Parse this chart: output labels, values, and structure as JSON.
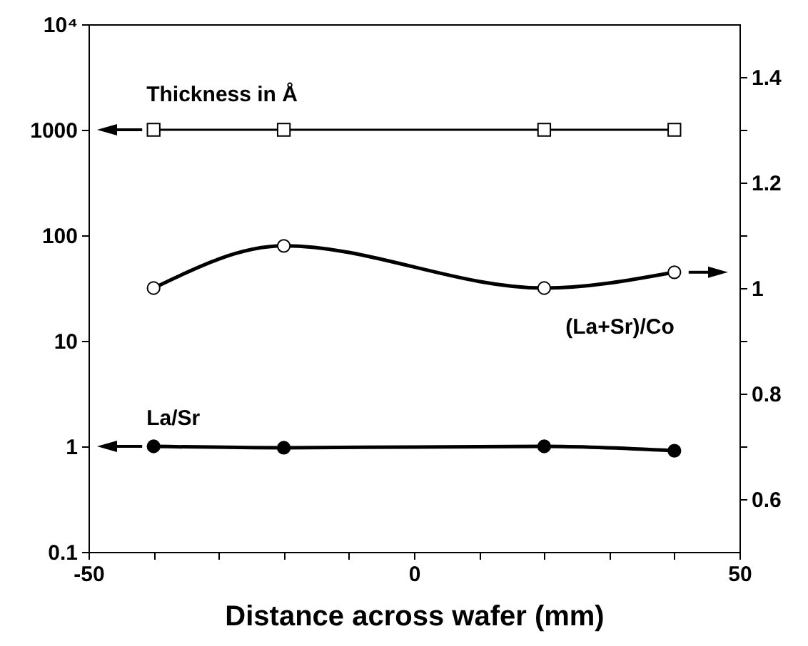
{
  "chart_data": {
    "type": "line",
    "xlabel": "Distance across wafer (mm)",
    "log": "y",
    "x": [
      -40,
      -20,
      20,
      40
    ],
    "series": [
      {
        "name": "Thickness in Å",
        "color": "#000000",
        "values": [
          1000,
          1000,
          1000,
          1000
        ],
        "marker": "square"
      },
      {
        "name": "La/Sr",
        "color": "#000000",
        "values": [
          1.0,
          0.97,
          1.0,
          0.91
        ],
        "marker": "circle",
        "colors": [
          "#000000",
          "#000000",
          "#000000",
          "#000000"
        ]
      },
      {
        "name": "(La+Sr)/Co",
        "color": "#000000",
        "values": [
          1.0,
          1.08,
          1.0,
          1.03
        ],
        "axis": "y2",
        "marker": "circle"
      }
    ],
    "xlim": [
      -50,
      50
    ],
    "xticks": [
      -50,
      {
        "value": -40,
        "label": null
      },
      {
        "value": -30,
        "label": null
      },
      {
        "value": -20,
        "label": null
      },
      {
        "value": -10,
        "label": null
      },
      0,
      {
        "value": 10,
        "label": null
      },
      {
        "value": 20,
        "label": null
      },
      {
        "value": 30,
        "label": null
      },
      {
        "value": 40,
        "label": null
      },
      50
    ],
    "ylim": [
      0.1,
      10000
    ],
    "yticks": [
      0.1,
      1,
      10,
      100,
      1000,
      {
        "value": 10000,
        "label": "10⁴"
      }
    ],
    "y2lim": [
      0.5,
      1.5
    ],
    "y2ticks": [
      0.6,
      {
        "value": 0.7,
        "label": null
      },
      0.8,
      {
        "value": 0.9,
        "label": null
      },
      1,
      {
        "value": 1.1,
        "label": null
      },
      1.2,
      {
        "value": 1.3,
        "label": null
      },
      1.4
    ]
  }
}
